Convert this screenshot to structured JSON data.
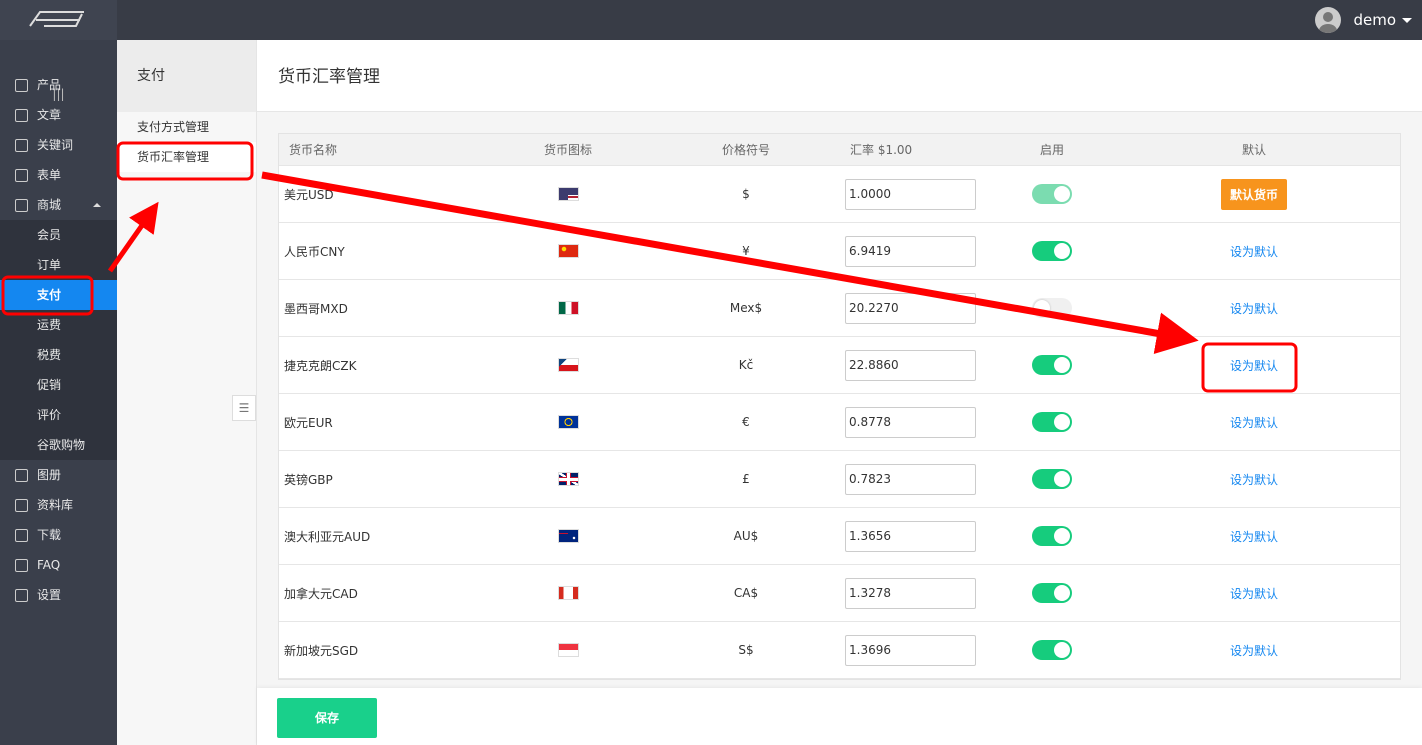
{
  "header": {
    "user": "demo"
  },
  "sidebar": {
    "items": [
      {
        "label": "产品"
      },
      {
        "label": "文章"
      },
      {
        "label": "关键词"
      },
      {
        "label": "表单"
      },
      {
        "label": "商城",
        "children": [
          "会员",
          "订单",
          "支付",
          "运费",
          "税费",
          "促销",
          "评价",
          "谷歌购物"
        ]
      },
      {
        "label": "图册"
      },
      {
        "label": "资料库"
      },
      {
        "label": "下载"
      },
      {
        "label": "FAQ"
      },
      {
        "label": "设置"
      }
    ],
    "active": "支付"
  },
  "subnav": {
    "title": "支付",
    "items": [
      "支付方式管理",
      "货币汇率管理"
    ],
    "selected": 1
  },
  "page": {
    "title": "货币汇率管理"
  },
  "table": {
    "columns": [
      "货币名称",
      "货币图标",
      "价格符号",
      "汇率 $1.00",
      "启用",
      "默认"
    ],
    "rows": [
      {
        "name": "美元USD",
        "symbol": "$",
        "rate": "1.0000",
        "enabled": true,
        "is_default": true,
        "action": "默认货币"
      },
      {
        "name": "人民币CNY",
        "symbol": "¥",
        "rate": "6.9419",
        "enabled": true,
        "is_default": false,
        "action": "设为默认"
      },
      {
        "name": "墨西哥MXD",
        "symbol": "Mex$",
        "rate": "20.2270",
        "enabled": false,
        "is_default": false,
        "action": "设为默认"
      },
      {
        "name": "捷克克朗CZK",
        "symbol": "Kč",
        "rate": "22.8860",
        "enabled": true,
        "is_default": false,
        "action": "设为默认"
      },
      {
        "name": "欧元EUR",
        "symbol": "€",
        "rate": "0.8778",
        "enabled": true,
        "is_default": false,
        "action": "设为默认"
      },
      {
        "name": "英镑GBP",
        "symbol": "£",
        "rate": "0.7823",
        "enabled": true,
        "is_default": false,
        "action": "设为默认"
      },
      {
        "name": "澳大利亚元AUD",
        "symbol": "AU$",
        "rate": "1.3656",
        "enabled": true,
        "is_default": false,
        "action": "设为默认"
      },
      {
        "name": "加拿大元CAD",
        "symbol": "CA$",
        "rate": "1.3278",
        "enabled": true,
        "is_default": false,
        "action": "设为默认"
      },
      {
        "name": "新加坡元SGD",
        "symbol": "S$",
        "rate": "1.3696",
        "enabled": true,
        "is_default": false,
        "action": "设为默认"
      }
    ]
  },
  "footer": {
    "save": "保存"
  }
}
